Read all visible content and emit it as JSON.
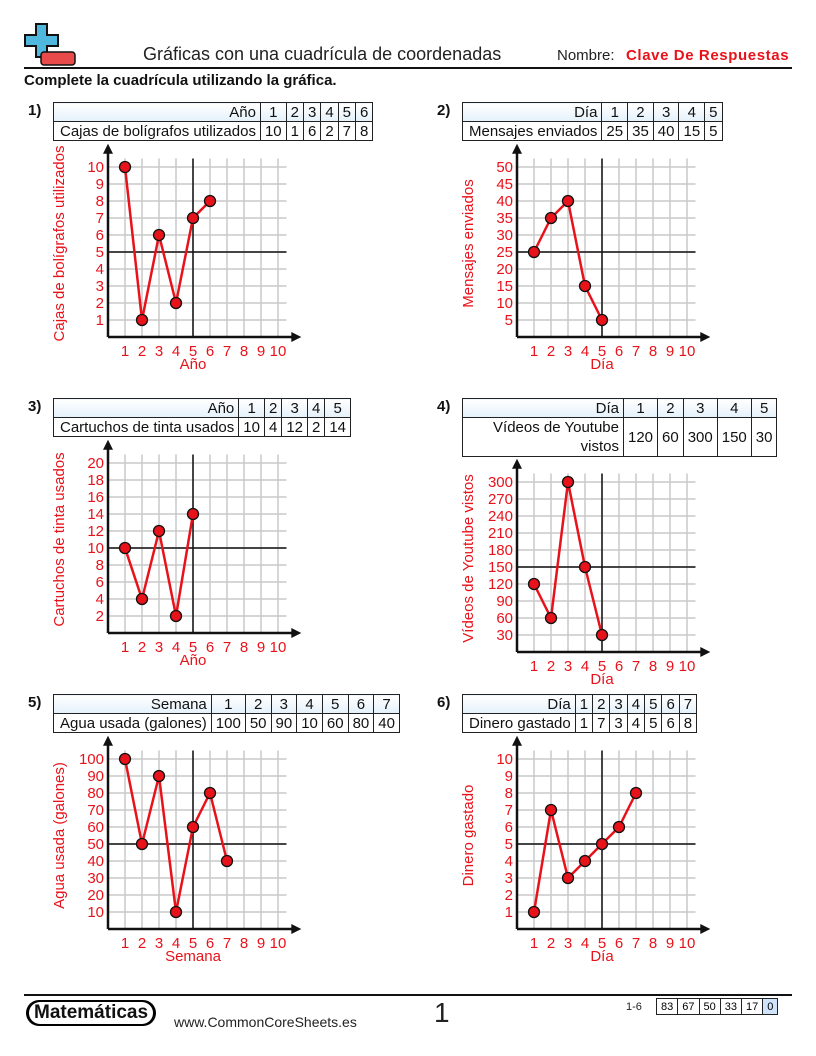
{
  "header": {
    "title": "Gráficas con una cuadrícula de coordenadas",
    "name_label": "Nombre:",
    "name_value": "Clave De Respuestas",
    "instructions": "Complete la cuadrícula utilizando la gráfica."
  },
  "colors": {
    "answer": "#e8121b",
    "point_fill": "#e8121b",
    "grid": "#c8c8c8",
    "axis": "#111111",
    "table_header": "#e4f1fb"
  },
  "problems": [
    {
      "number": "1)",
      "x_label": "Año",
      "y_label": "Cajas de bolígrafos utilizados",
      "x": [
        "1",
        "2",
        "3",
        "4",
        "5",
        "6"
      ],
      "y": [
        "10",
        "1",
        "6",
        "2",
        "7",
        "8"
      ],
      "y_step": 1
    },
    {
      "number": "2)",
      "x_label": "Día",
      "y_label": "Mensajes enviados",
      "x": [
        "1",
        "2",
        "3",
        "4",
        "5"
      ],
      "y": [
        "25",
        "35",
        "40",
        "15",
        "5"
      ],
      "y_step": 5
    },
    {
      "number": "3)",
      "x_label": "Año",
      "y_label": "Cartuchos de tinta usados",
      "x": [
        "1",
        "2",
        "3",
        "4",
        "5"
      ],
      "y": [
        "10",
        "4",
        "12",
        "2",
        "14"
      ],
      "y_step": 2
    },
    {
      "number": "4)",
      "x_label": "Día",
      "y_label": "Vídeos de Youtube vistos",
      "x": [
        "1",
        "2",
        "3",
        "4",
        "5"
      ],
      "y": [
        "120",
        "60",
        "300",
        "150",
        "30"
      ],
      "y_step": 30
    },
    {
      "number": "5)",
      "x_label": "Semana",
      "y_label": "Agua usada (galones)",
      "x": [
        "1",
        "2",
        "3",
        "4",
        "5",
        "6",
        "7"
      ],
      "y": [
        "100",
        "50",
        "90",
        "10",
        "60",
        "80",
        "40"
      ],
      "y_step": 10
    },
    {
      "number": "6)",
      "x_label": "Día",
      "y_label": "Dinero gastado",
      "x": [
        "1",
        "2",
        "3",
        "4",
        "5",
        "6",
        "7"
      ],
      "y": [
        "1",
        "7",
        "3",
        "4",
        "5",
        "6",
        "8"
      ],
      "y_step": 1
    }
  ],
  "chart_data": [
    {
      "type": "line",
      "xlabel": "Año",
      "ylabel": "Cajas de bolígrafos utilizados",
      "x": [
        1,
        2,
        3,
        4,
        5,
        6
      ],
      "y": [
        10,
        1,
        6,
        2,
        7,
        8
      ],
      "xlim": [
        0,
        10
      ],
      "ylim": [
        0,
        10
      ],
      "grid": true
    },
    {
      "type": "line",
      "xlabel": "Día",
      "ylabel": "Mensajes enviados",
      "x": [
        1,
        2,
        3,
        4,
        5
      ],
      "y": [
        25,
        35,
        40,
        15,
        5
      ],
      "xlim": [
        0,
        10
      ],
      "ylim": [
        0,
        50
      ],
      "grid": true
    },
    {
      "type": "line",
      "xlabel": "Año",
      "ylabel": "Cartuchos de tinta usados",
      "x": [
        1,
        2,
        3,
        4,
        5
      ],
      "y": [
        10,
        4,
        12,
        2,
        14
      ],
      "xlim": [
        0,
        10
      ],
      "ylim": [
        0,
        20
      ],
      "grid": true
    },
    {
      "type": "line",
      "xlabel": "Día",
      "ylabel": "Vídeos de Youtube vistos",
      "x": [
        1,
        2,
        3,
        4,
        5
      ],
      "y": [
        120,
        60,
        300,
        150,
        30
      ],
      "xlim": [
        0,
        10
      ],
      "ylim": [
        0,
        300
      ],
      "grid": true
    },
    {
      "type": "line",
      "xlabel": "Semana",
      "ylabel": "Agua usada (galones)",
      "x": [
        1,
        2,
        3,
        4,
        5,
        6,
        7
      ],
      "y": [
        100,
        50,
        90,
        10,
        60,
        80,
        40
      ],
      "xlim": [
        0,
        10
      ],
      "ylim": [
        0,
        100
      ],
      "grid": true
    },
    {
      "type": "line",
      "xlabel": "Día",
      "ylabel": "Dinero gastado",
      "x": [
        1,
        2,
        3,
        4,
        5,
        6,
        7
      ],
      "y": [
        1,
        7,
        3,
        4,
        5,
        6,
        8
      ],
      "xlim": [
        0,
        10
      ],
      "ylim": [
        0,
        10
      ],
      "grid": true
    }
  ],
  "footer": {
    "brand": "Matemáticas",
    "site": "www.CommonCoreSheets.es",
    "page": "1",
    "range": "1-6",
    "scores": [
      "83",
      "67",
      "50",
      "33",
      "17",
      "0"
    ]
  }
}
